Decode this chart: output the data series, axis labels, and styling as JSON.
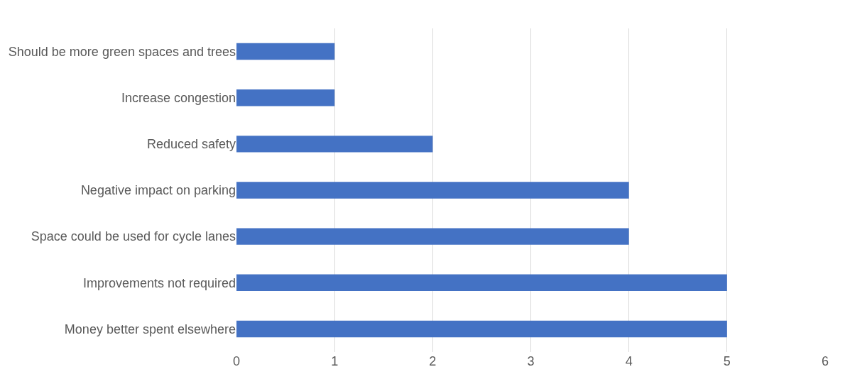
{
  "chart_data": {
    "type": "bar",
    "orientation": "horizontal",
    "categories": [
      "Should be more green spaces and trees",
      "Increase congestion",
      "Reduced safety",
      "Negative impact on parking",
      "Space could be used for cycle lanes",
      "Improvements not required",
      "Money better spent elsewhere"
    ],
    "values": [
      1,
      1,
      2,
      4,
      4,
      5,
      5
    ],
    "color": "#4472c4",
    "xlim": [
      0,
      6
    ],
    "xticks": [
      0,
      1,
      2,
      3,
      4,
      5,
      6
    ],
    "grid": "x"
  }
}
